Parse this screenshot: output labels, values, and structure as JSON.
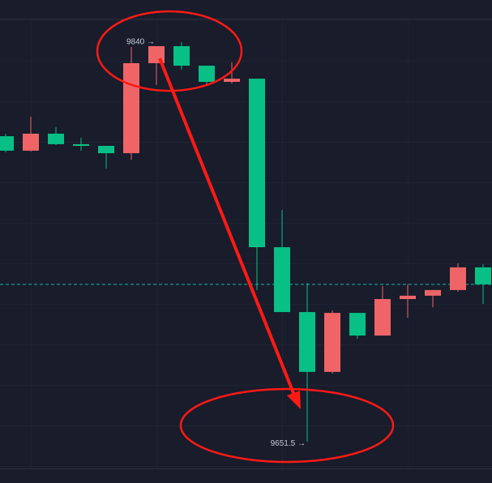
{
  "chart_data": {
    "type": "candlestick",
    "open": [
      9797.1,
      9790.2,
      9798.3,
      9793.3,
      9792.5,
      9789.0,
      9831.9,
      9840.0,
      9830.7,
      9823.0,
      9824.5,
      9744.2,
      9713.3,
      9684.8,
      9712.9,
      9702.1,
      9719.5,
      9721.1,
      9723.8,
      9734.6
    ],
    "high": [
      9798.3,
      9806.4,
      9801.4,
      9796.4,
      9792.5,
      9839.6,
      9840.0,
      9841.9,
      9830.7,
      9832.3,
      9824.5,
      9762.0,
      9727.2,
      9714.1,
      9712.9,
      9725.7,
      9726.5,
      9723.8,
      9736.5,
      9736.1
    ],
    "low": [
      9789.4,
      9789.8,
      9792.9,
      9790.2,
      9781.7,
      9785.9,
      9821.5,
      9828.8,
      9821.8,
      9822.2,
      9723.8,
      9713.3,
      9651.5,
      9684.0,
      9700.6,
      9702.1,
      9710.6,
      9715.6,
      9723.0,
      9717.2
    ],
    "close": [
      9790.2,
      9798.3,
      9793.3,
      9792.5,
      9789.0,
      9831.9,
      9840.0,
      9830.7,
      9823.0,
      9824.5,
      9744.2,
      9713.3,
      9684.8,
      9712.9,
      9702.1,
      9719.5,
      9721.1,
      9723.8,
      9734.6,
      9726.5
    ],
    "up_color": "#ef6567",
    "down_color": "#08c086",
    "ylim": [
      9638.8,
      9862.0
    ],
    "price_line": {
      "value": 9726.5,
      "color": "#1fb5a3"
    },
    "annotations": [
      {
        "value": 9840,
        "label": "9840 →"
      },
      {
        "value": 9651.5,
        "label": "9651.5 →"
      }
    ]
  }
}
